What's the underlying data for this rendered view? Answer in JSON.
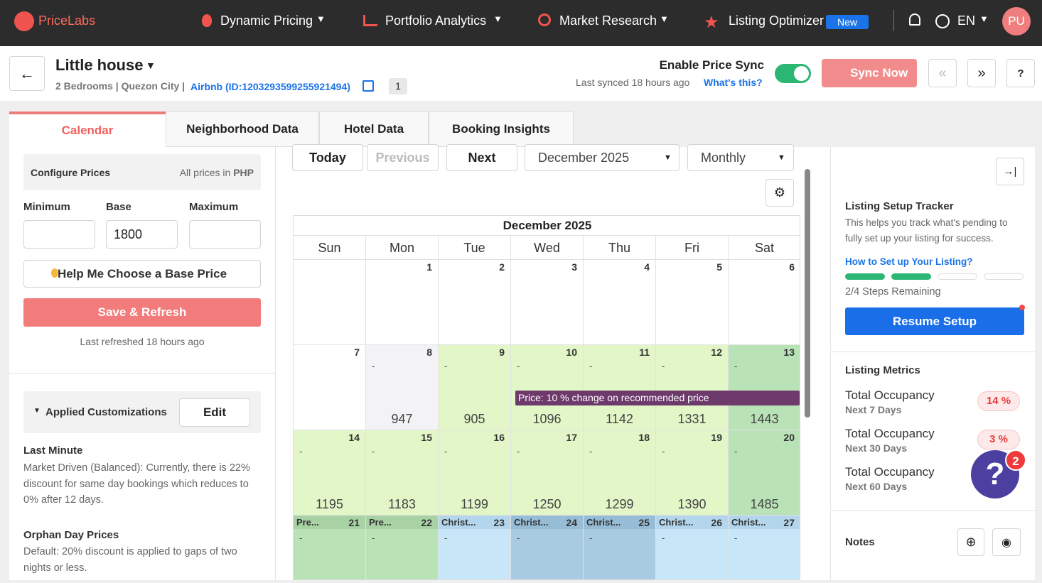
{
  "nav": {
    "brand": "PriceLabs",
    "items": [
      "Dynamic Pricing",
      "Portfolio Analytics",
      "Market Research",
      "Listing Optimizer"
    ],
    "new_badge": "New",
    "lang": "EN",
    "avatar": "PU"
  },
  "header": {
    "title": "Little house",
    "details": "2 Bedrooms | Quezon City |",
    "listing_link": "Airbnb (ID:1203293599255921494)",
    "count": "1",
    "sync_label": "Enable Price Sync",
    "last_synced": "Last synced 18 hours ago",
    "whats_this": "What's this?",
    "sync_button": "Sync Now"
  },
  "tabs": [
    "Calendar",
    "Neighborhood Data",
    "Hotel Data",
    "Booking Insights"
  ],
  "left": {
    "configure": "Configure Prices",
    "currency_note": "All prices in",
    "currency": "PHP",
    "fields": [
      {
        "label": "Minimum"
      },
      {
        "label": "Base",
        "value": "1800"
      },
      {
        "label": "Maximum"
      }
    ],
    "help_button": "Help Me Choose a Base Price",
    "save_button": "Save & Refresh",
    "last_refreshed": "Last refreshed 18 hours ago",
    "customizations": "Applied Customizations",
    "edit_button": "Edit",
    "rules": [
      {
        "title": "Last Minute",
        "text": "Market Driven (Balanced): Currently, there is 22% discount for same day bookings which reduces to 0% after 12 days."
      },
      {
        "title": "Orphan Day Prices",
        "text": "Default: 20% discount is applied to gaps of two nights or less."
      }
    ]
  },
  "calendar": {
    "toolbar": {
      "today": "Today",
      "previous": "Previous",
      "next": "Next",
      "month_select": "December 2025",
      "view_select": "Monthly"
    },
    "month": "December 2025",
    "weekdays": [
      "Sun",
      "Mon",
      "Tue",
      "Wed",
      "Thu",
      "Fri",
      "Sat"
    ],
    "weeks": [
      [
        null,
        {
          "day": 1
        },
        {
          "day": 2
        },
        {
          "day": 3
        },
        {
          "day": 4
        },
        {
          "day": 5
        },
        {
          "day": 6
        }
      ],
      [
        {
          "day": 7
        },
        {
          "day": 8,
          "mark": "-",
          "price": 947,
          "color": "#f3f3f5"
        },
        {
          "day": 9,
          "mark": "-",
          "price": 905,
          "color": "#e2f6c8"
        },
        {
          "day": 10,
          "mark": "-",
          "price": 1096,
          "color": "#e2f6c8"
        },
        {
          "day": 11,
          "mark": "-",
          "price": 1142,
          "color": "#e2f6c8"
        },
        {
          "day": 12,
          "mark": "-",
          "price": 1331,
          "color": "#e2f6c8"
        },
        {
          "day": 13,
          "mark": "-",
          "price": 1443,
          "color": "#b9e2b6"
        }
      ],
      [
        {
          "day": 14,
          "mark": "-",
          "price": 1195,
          "color": "#e2f6c8"
        },
        {
          "day": 15,
          "mark": "-",
          "price": 1183,
          "color": "#e2f6c8"
        },
        {
          "day": 16,
          "mark": "-",
          "price": 1199,
          "color": "#e2f6c8"
        },
        {
          "day": 17,
          "mark": "-",
          "price": 1250,
          "color": "#e2f6c8"
        },
        {
          "day": 18,
          "mark": "-",
          "price": 1299,
          "color": "#e2f6c8"
        },
        {
          "day": 19,
          "mark": "-",
          "price": 1390,
          "color": "#e2f6c8"
        },
        {
          "day": 20,
          "mark": "-",
          "price": 1485,
          "color": "#b9e2b6"
        }
      ],
      [
        {
          "day": 21,
          "event": "Pre...",
          "mark": "-",
          "color": "#b9e2b6",
          "header_color": "#a8d2a4"
        },
        {
          "day": 22,
          "event": "Pre...",
          "mark": "-",
          "color": "#b9e2b6",
          "header_color": "#a8d2a4"
        },
        {
          "day": 23,
          "event": "Christ...",
          "mark": "-",
          "color": "#c7e6f8",
          "header_color": "#b3d6ec"
        },
        {
          "day": 24,
          "event": "Christ...",
          "mark": "-",
          "color": "#a8cbe2",
          "header_color": "#97bdd6"
        },
        {
          "day": 25,
          "event": "Christ...",
          "mark": "-",
          "color": "#a8cbe2",
          "header_color": "#97bdd6"
        },
        {
          "day": 26,
          "event": "Christ...",
          "mark": "-",
          "color": "#c7e6f8",
          "header_color": "#b3d6ec"
        },
        {
          "day": 27,
          "event": "Christ...",
          "mark": "-",
          "color": "#c7e6f8",
          "header_color": "#b3d6ec"
        }
      ]
    ],
    "banner": "Price: 10 % change on recommended price"
  },
  "right": {
    "tracker_title": "Listing Setup Tracker",
    "tracker_text": "This helps you track what's pending to fully set up your listing for success.",
    "tracker_link": "How to Set up Your Listing?",
    "progress": [
      true,
      true,
      false,
      false
    ],
    "steps": "2/4 Steps Remaining",
    "resume_button": "Resume Setup",
    "metrics_title": "Listing Metrics",
    "metrics": [
      {
        "label": "Total Occupancy",
        "period": "Next 7 Days",
        "value": "14 %"
      },
      {
        "label": "Total Occupancy",
        "period": "Next 30 Days",
        "value": "3 %"
      },
      {
        "label": "Total Occupancy",
        "period": "Next 60 Days"
      }
    ],
    "notes": "Notes"
  },
  "help_bubble": {
    "icon": "?",
    "badge": "2"
  }
}
